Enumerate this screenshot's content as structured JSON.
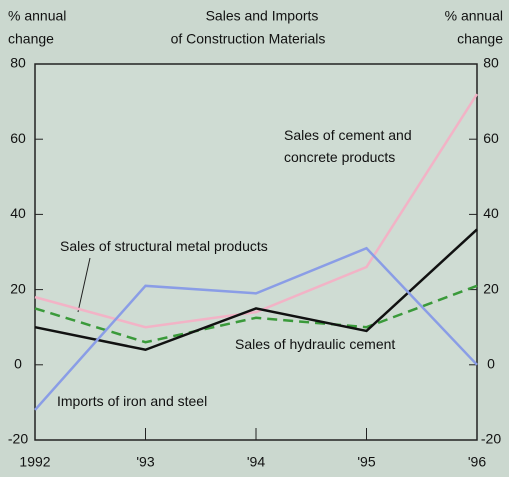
{
  "chart_data": {
    "type": "line",
    "title": [
      "Sales and Imports",
      "of Construction Materials"
    ],
    "y_label": [
      "% annual",
      "change"
    ],
    "y2_label": [
      "% annual",
      "change"
    ],
    "categories": [
      "1992",
      "'93",
      "'94",
      "'95",
      "'96"
    ],
    "series": [
      {
        "name": "Imports of iron and steel",
        "color": "#8a9de6",
        "values": [
          -12,
          21,
          19,
          31,
          0
        ]
      },
      {
        "name": "Sales of hydraulic cement",
        "color": "#111111",
        "values": [
          10,
          4,
          15,
          9,
          36
        ]
      },
      {
        "name": "Sales of structural metal products",
        "color": "#3a9a3a",
        "dashed": true,
        "values": [
          15,
          6,
          12.5,
          10,
          21
        ]
      },
      {
        "name": "Sales of cement and concrete products",
        "color": "#f2b3c6",
        "values": [
          18,
          10,
          14,
          26,
          72
        ]
      }
    ],
    "ylim": [
      -20,
      80
    ],
    "yticks": [
      -20,
      0,
      20,
      40,
      60,
      80
    ],
    "y2lim": [
      -20,
      80
    ],
    "y2ticks": [
      -20,
      0,
      20,
      40,
      60,
      80
    ]
  }
}
